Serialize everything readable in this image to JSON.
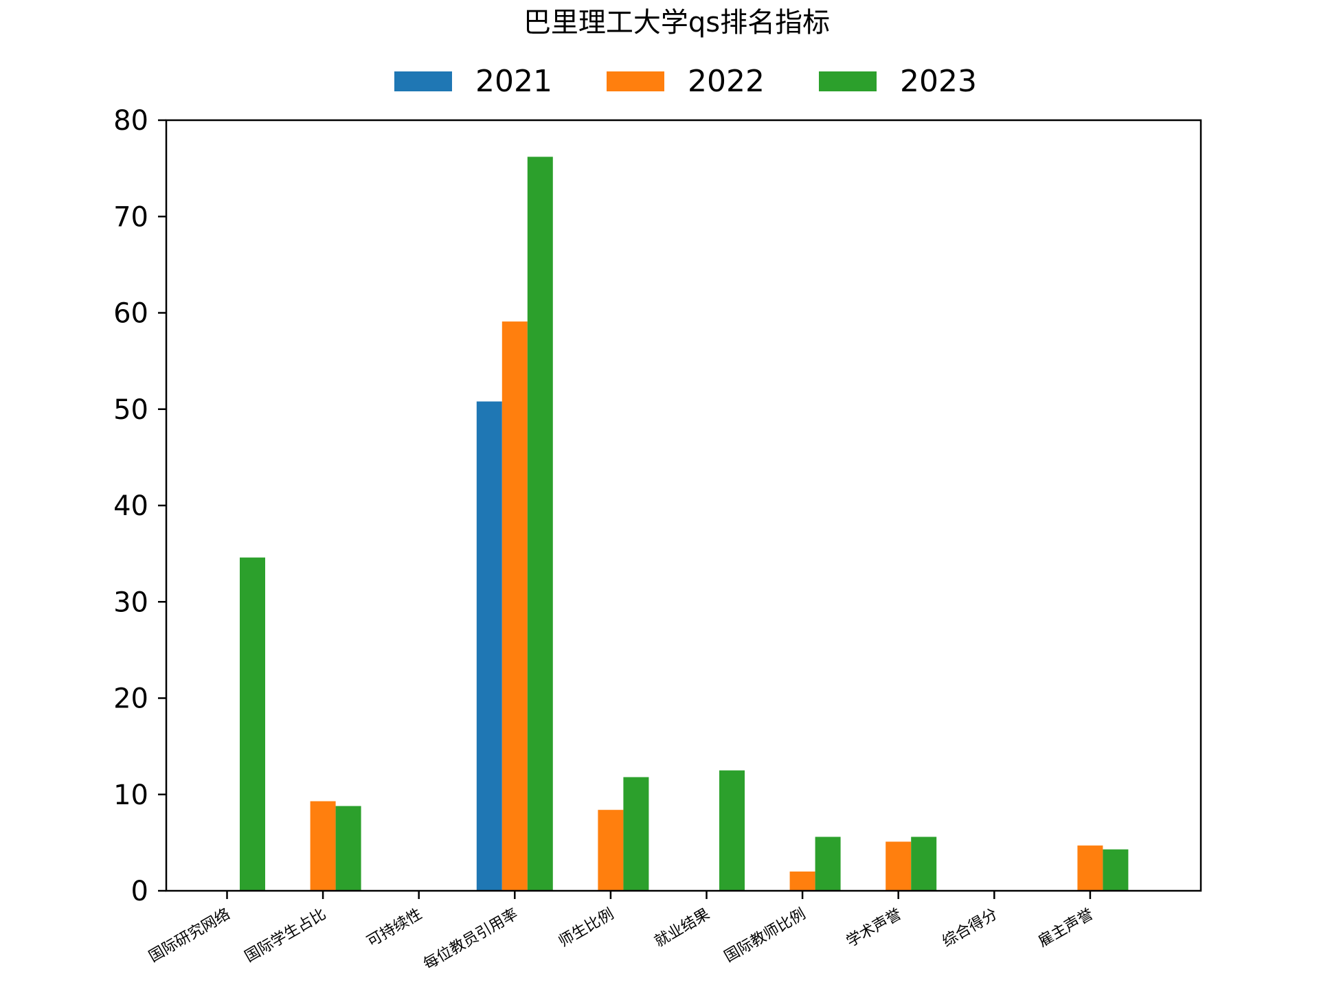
{
  "chart_data": {
    "type": "bar",
    "title": "巴里理工大学qs排名指标",
    "xlabel": "",
    "ylabel": "",
    "ylim": [
      0,
      80
    ],
    "yticks": [
      0,
      10,
      20,
      30,
      40,
      50,
      60,
      70,
      80
    ],
    "grid": false,
    "legend_position": "top-center",
    "categories": [
      "国际研究网络",
      "国际学生占比",
      "可持续性",
      "每位教员引用率",
      "师生比例",
      "就业结果",
      "国际教师比例",
      "学术声誉",
      "综合得分",
      "雇主声誉"
    ],
    "series": [
      {
        "name": "2021",
        "color": "#1f77b4",
        "values": [
          0,
          0,
          0,
          50.8,
          0,
          0,
          0,
          0,
          0,
          0
        ]
      },
      {
        "name": "2022",
        "color": "#ff7f0e",
        "values": [
          0,
          9.3,
          0,
          59.1,
          8.4,
          0,
          2.0,
          5.1,
          0,
          4.7
        ]
      },
      {
        "name": "2023",
        "color": "#2ca02c",
        "values": [
          34.6,
          8.8,
          0,
          76.2,
          11.8,
          12.5,
          5.6,
          5.6,
          0,
          4.3
        ]
      }
    ]
  }
}
